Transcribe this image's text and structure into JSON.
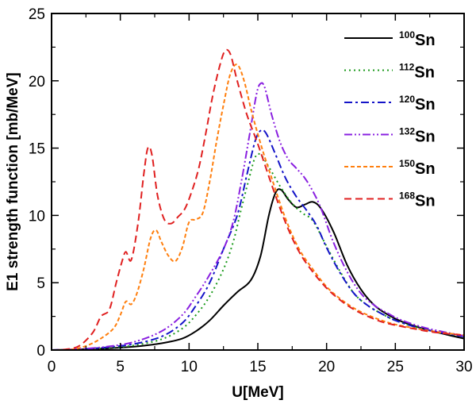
{
  "chart_data": {
    "type": "line",
    "title": "",
    "xlabel": "U[MeV]",
    "ylabel": "E1 strength function [mb/MeV]",
    "xlim": [
      0,
      30
    ],
    "ylim": [
      0,
      25
    ],
    "xticks": [
      "0",
      "5",
      "10",
      "15",
      "20",
      "25",
      "30"
    ],
    "yticks": [
      "0",
      "5",
      "10",
      "15",
      "20",
      "25"
    ],
    "legend_position": "top-right",
    "series": [
      {
        "name": "100Sn",
        "mass": "100",
        "element": "Sn",
        "color": "#000000",
        "dash": "none",
        "points": [
          [
            0,
            0
          ],
          [
            2,
            0.05
          ],
          [
            4,
            0.12
          ],
          [
            6,
            0.25
          ],
          [
            8,
            0.5
          ],
          [
            9.5,
            0.85
          ],
          [
            10.5,
            1.4
          ],
          [
            11.5,
            2.2
          ],
          [
            12.5,
            3.3
          ],
          [
            13.5,
            4.3
          ],
          [
            14.5,
            5.2
          ],
          [
            15.2,
            7.0
          ],
          [
            15.8,
            10.0
          ],
          [
            16.3,
            11.7
          ],
          [
            16.7,
            11.9
          ],
          [
            17.2,
            11.2
          ],
          [
            17.8,
            10.6
          ],
          [
            18.4,
            10.8
          ],
          [
            19.0,
            11.0
          ],
          [
            19.6,
            10.5
          ],
          [
            20.5,
            8.8
          ],
          [
            21.5,
            6.3
          ],
          [
            22.5,
            4.5
          ],
          [
            23.5,
            3.3
          ],
          [
            24.5,
            2.6
          ],
          [
            25.5,
            2.1
          ],
          [
            27,
            1.6
          ],
          [
            28.5,
            1.2
          ],
          [
            30,
            0.85
          ]
        ]
      },
      {
        "name": "112Sn",
        "mass": "112",
        "element": "Sn",
        "color": "#1a9a1a",
        "dash": "2,4",
        "points": [
          [
            0,
            0
          ],
          [
            2,
            0.05
          ],
          [
            4,
            0.15
          ],
          [
            6,
            0.35
          ],
          [
            8,
            0.8
          ],
          [
            9.5,
            1.6
          ],
          [
            10.5,
            2.6
          ],
          [
            11.5,
            4.0
          ],
          [
            12.5,
            6.0
          ],
          [
            13.2,
            8.0
          ],
          [
            13.8,
            10.5
          ],
          [
            14.3,
            12.5
          ],
          [
            14.8,
            14.3
          ],
          [
            15.2,
            14.5
          ],
          [
            15.8,
            13.6
          ],
          [
            16.6,
            12.2
          ],
          [
            17.4,
            11.0
          ],
          [
            18.2,
            10.2
          ],
          [
            19.0,
            9.6
          ],
          [
            20,
            7.7
          ],
          [
            21,
            5.8
          ],
          [
            22,
            4.2
          ],
          [
            23,
            3.3
          ],
          [
            24,
            2.7
          ],
          [
            25,
            2.2
          ],
          [
            26.5,
            1.7
          ],
          [
            28,
            1.35
          ],
          [
            30,
            1.0
          ]
        ]
      },
      {
        "name": "120Sn",
        "mass": "120",
        "element": "Sn",
        "color": "#1414c8",
        "dash": "10,4,3,4",
        "points": [
          [
            0,
            0
          ],
          [
            2,
            0.06
          ],
          [
            4,
            0.2
          ],
          [
            6,
            0.45
          ],
          [
            8,
            1.0
          ],
          [
            9.5,
            2.0
          ],
          [
            10.5,
            3.3
          ],
          [
            11.5,
            5.0
          ],
          [
            12.5,
            7.5
          ],
          [
            13.5,
            10.0
          ],
          [
            14.2,
            13.0
          ],
          [
            14.8,
            15.5
          ],
          [
            15.2,
            16.3
          ],
          [
            15.6,
            16.1
          ],
          [
            16.3,
            14.5
          ],
          [
            17.0,
            12.8
          ],
          [
            17.8,
            11.4
          ],
          [
            18.6,
            10.3
          ],
          [
            19.3,
            9.2
          ],
          [
            20,
            7.6
          ],
          [
            21,
            5.7
          ],
          [
            22,
            4.2
          ],
          [
            23,
            3.3
          ],
          [
            24,
            2.7
          ],
          [
            25,
            2.2
          ],
          [
            26.5,
            1.7
          ],
          [
            28,
            1.35
          ],
          [
            30,
            1.0
          ]
        ]
      },
      {
        "name": "132Sn",
        "mass": "132",
        "element": "Sn",
        "color": "#8a20e0",
        "dash": "10,3,2,3,2,3",
        "points": [
          [
            0,
            0
          ],
          [
            2,
            0.07
          ],
          [
            4,
            0.25
          ],
          [
            6,
            0.6
          ],
          [
            8,
            1.4
          ],
          [
            9.5,
            2.6
          ],
          [
            10.5,
            4.0
          ],
          [
            11.5,
            5.6
          ],
          [
            12.5,
            7.5
          ],
          [
            13.2,
            9.5
          ],
          [
            13.8,
            12.5
          ],
          [
            14.4,
            16.0
          ],
          [
            14.9,
            19.0
          ],
          [
            15.2,
            19.8
          ],
          [
            15.5,
            19.5
          ],
          [
            16.0,
            17.5
          ],
          [
            16.6,
            15.5
          ],
          [
            17.2,
            14.2
          ],
          [
            17.8,
            13.5
          ],
          [
            18.4,
            12.8
          ],
          [
            19.0,
            11.8
          ],
          [
            19.6,
            10.5
          ],
          [
            20.5,
            8.0
          ],
          [
            21.5,
            5.8
          ],
          [
            22.5,
            4.2
          ],
          [
            23.5,
            3.3
          ],
          [
            24.5,
            2.7
          ],
          [
            25.5,
            2.2
          ],
          [
            27,
            1.7
          ],
          [
            28.5,
            1.35
          ],
          [
            30,
            1.05
          ]
        ]
      },
      {
        "name": "150Sn",
        "mass": "150",
        "element": "Sn",
        "color": "#ff7f0e",
        "dash": "5,3",
        "points": [
          [
            0,
            0
          ],
          [
            1.5,
            0.05
          ],
          [
            2.5,
            0.3
          ],
          [
            3.5,
            0.8
          ],
          [
            4.5,
            1.6
          ],
          [
            5.0,
            2.6
          ],
          [
            5.4,
            3.6
          ],
          [
            5.8,
            3.4
          ],
          [
            6.2,
            4.2
          ],
          [
            6.7,
            6.0
          ],
          [
            7.2,
            8.3
          ],
          [
            7.6,
            8.9
          ],
          [
            8.0,
            8.0
          ],
          [
            8.5,
            7.0
          ],
          [
            9.0,
            6.6
          ],
          [
            9.5,
            7.6
          ],
          [
            10.0,
            9.5
          ],
          [
            10.5,
            9.7
          ],
          [
            11.0,
            10.2
          ],
          [
            11.5,
            12.5
          ],
          [
            12.0,
            15.5
          ],
          [
            12.5,
            18.2
          ],
          [
            13.0,
            20.5
          ],
          [
            13.5,
            21.2
          ],
          [
            14.0,
            20.0
          ],
          [
            14.6,
            17.5
          ],
          [
            15.3,
            15.0
          ],
          [
            16.0,
            12.8
          ],
          [
            17,
            9.8
          ],
          [
            18,
            7.5
          ],
          [
            19,
            6.0
          ],
          [
            20,
            4.7
          ],
          [
            21,
            3.8
          ],
          [
            22,
            3.1
          ],
          [
            23,
            2.6
          ],
          [
            24,
            2.2
          ],
          [
            25,
            1.9
          ],
          [
            26.5,
            1.6
          ],
          [
            28,
            1.35
          ],
          [
            30,
            1.1
          ]
        ]
      },
      {
        "name": "168Sn",
        "mass": "168",
        "element": "Sn",
        "color": "#e02020",
        "dash": "9,5",
        "points": [
          [
            0,
            0
          ],
          [
            1,
            0.05
          ],
          [
            2,
            0.3
          ],
          [
            3,
            1.3
          ],
          [
            3.6,
            2.5
          ],
          [
            4.2,
            3.0
          ],
          [
            4.7,
            5.0
          ],
          [
            5.1,
            6.5
          ],
          [
            5.4,
            7.3
          ],
          [
            5.8,
            6.7
          ],
          [
            6.3,
            9.5
          ],
          [
            6.7,
            13.0
          ],
          [
            7.0,
            15.0
          ],
          [
            7.3,
            14.5
          ],
          [
            7.7,
            11.5
          ],
          [
            8.2,
            9.7
          ],
          [
            8.7,
            9.4
          ],
          [
            9.2,
            9.9
          ],
          [
            9.7,
            10.5
          ],
          [
            10.2,
            11.8
          ],
          [
            10.7,
            13.5
          ],
          [
            11.2,
            16.0
          ],
          [
            11.7,
            18.8
          ],
          [
            12.2,
            21.0
          ],
          [
            12.6,
            22.2
          ],
          [
            13.0,
            22.0
          ],
          [
            13.5,
            20.0
          ],
          [
            14.2,
            17.5
          ],
          [
            15.0,
            15.3
          ],
          [
            16.0,
            12.3
          ],
          [
            17,
            9.5
          ],
          [
            18,
            7.3
          ],
          [
            19,
            5.8
          ],
          [
            20,
            4.6
          ],
          [
            21,
            3.7
          ],
          [
            22,
            3.0
          ],
          [
            23,
            2.5
          ],
          [
            24,
            2.1
          ],
          [
            25,
            1.85
          ],
          [
            26.5,
            1.55
          ],
          [
            28,
            1.3
          ],
          [
            30,
            1.1
          ]
        ]
      }
    ]
  }
}
